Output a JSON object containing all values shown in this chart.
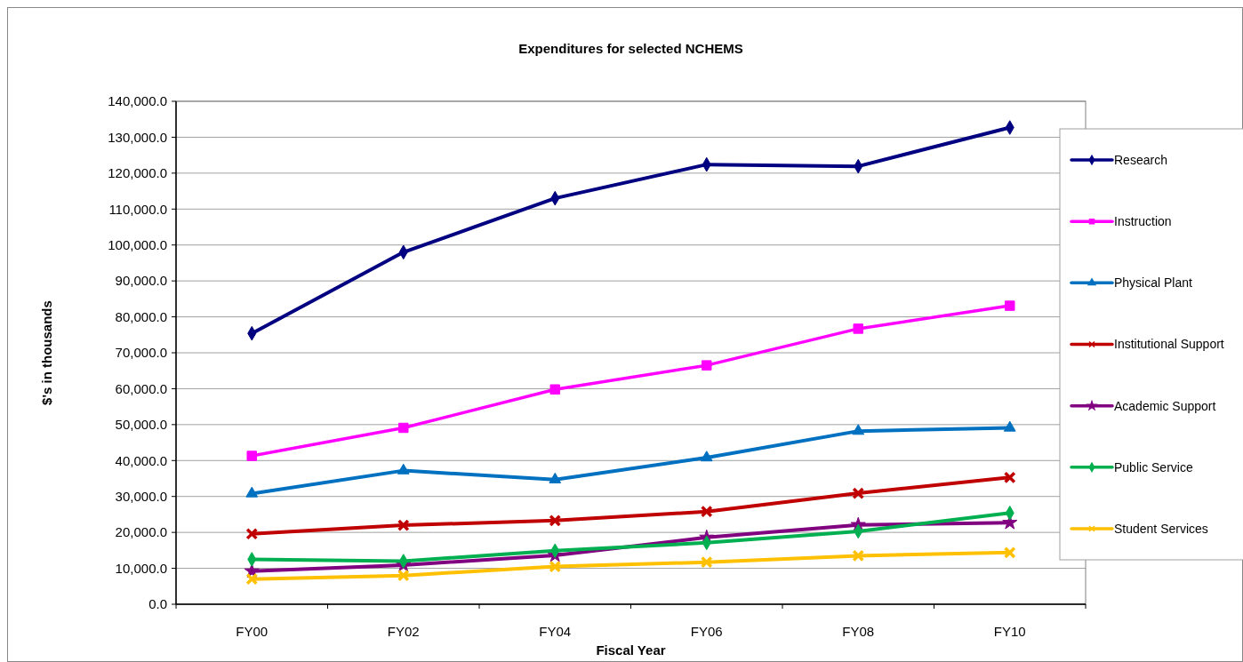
{
  "chart_data": {
    "type": "line",
    "title": "Expenditures for selected NCHEMS",
    "xlabel": "Fiscal Year",
    "ylabel": "$'s in thousands",
    "categories": [
      "FY00",
      "FY02",
      "FY04",
      "FY06",
      "FY08",
      "FY10"
    ],
    "series": [
      {
        "name": "Research",
        "color": "#000080",
        "marker": "diamond",
        "values": [
          75400,
          98000,
          113000,
          122400,
          121900,
          132700
        ]
      },
      {
        "name": "Instruction",
        "color": "#ff00ff",
        "marker": "square",
        "values": [
          41300,
          49100,
          59800,
          66500,
          76700,
          83100
        ]
      },
      {
        "name": "Physical Plant",
        "color": "#0070c0",
        "marker": "triangle",
        "values": [
          30800,
          37200,
          34700,
          40800,
          48200,
          49100
        ]
      },
      {
        "name": "Institutional Support",
        "color": "#c00000",
        "marker": "cross",
        "values": [
          19600,
          22000,
          23300,
          25800,
          30900,
          35300
        ]
      },
      {
        "name": "Academic Support",
        "color": "#800080",
        "marker": "star",
        "values": [
          9200,
          10900,
          13600,
          18600,
          22100,
          22700
        ]
      },
      {
        "name": "Public Service",
        "color": "#00b050",
        "marker": "diamond",
        "values": [
          12500,
          12000,
          14900,
          17100,
          20300,
          25400
        ]
      },
      {
        "name": "Student Services",
        "color": "#ffc000",
        "marker": "cross",
        "values": [
          7000,
          8000,
          10500,
          11700,
          13500,
          14400
        ]
      }
    ],
    "ylim": [
      0,
      140000
    ],
    "yticks": [
      {
        "value": 0,
        "label": "0.0"
      },
      {
        "value": 10000,
        "label": "10,000.0"
      },
      {
        "value": 20000,
        "label": "20,000.0"
      },
      {
        "value": 30000,
        "label": "30,000.0"
      },
      {
        "value": 40000,
        "label": "40,000.0"
      },
      {
        "value": 50000,
        "label": "50,000.0"
      },
      {
        "value": 60000,
        "label": "60,000.0"
      },
      {
        "value": 70000,
        "label": "70,000.0"
      },
      {
        "value": 80000,
        "label": "80,000.0"
      },
      {
        "value": 90000,
        "label": "90,000.0"
      },
      {
        "value": 100000,
        "label": "100,000.0"
      },
      {
        "value": 110000,
        "label": "110,000.0"
      },
      {
        "value": 120000,
        "label": "120,000.0"
      },
      {
        "value": 130000,
        "label": "130,000.0"
      },
      {
        "value": 140000,
        "label": "140,000.0"
      }
    ],
    "grid": "y",
    "legend": "right",
    "line_style": "solid"
  }
}
